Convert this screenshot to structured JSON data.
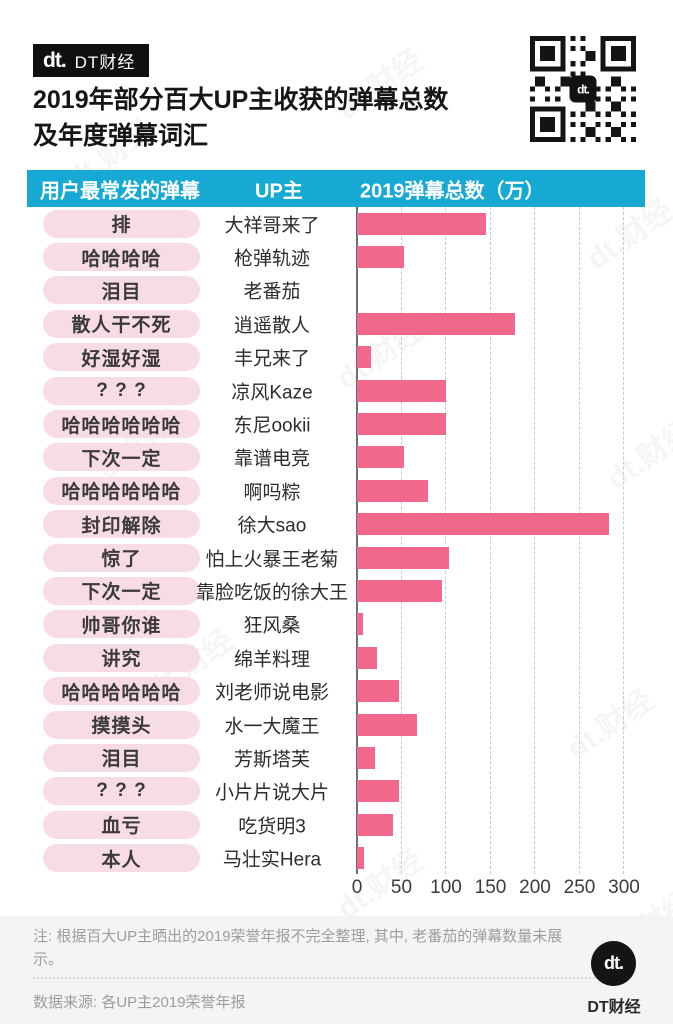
{
  "header": {
    "logo_mark": "dt.",
    "logo_name": "DT财经",
    "title_line1": "2019年部分百大UP主收获的弹幕总数",
    "title_line2": "及年度弹幕词汇"
  },
  "table": {
    "col_comment": "用户最常发的弹幕",
    "col_up": "UP主",
    "col_total": "2019弹幕总数（万）"
  },
  "rows": [
    {
      "comment": "排",
      "up": "大祥哥来了",
      "value": 145
    },
    {
      "comment": "哈哈哈哈",
      "up": "枪弹轨迹",
      "value": 53
    },
    {
      "comment": "泪目",
      "up": "老番茄",
      "value": null
    },
    {
      "comment": "散人干不死",
      "up": "逍遥散人",
      "value": 177
    },
    {
      "comment": "好湿好湿",
      "up": "丰兄来了",
      "value": 16
    },
    {
      "comment": "? ? ?",
      "up": "凉风Kaze",
      "value": 100
    },
    {
      "comment": "哈哈哈哈哈哈",
      "up": "东尼ookii",
      "value": 100
    },
    {
      "comment": "下次一定",
      "up": "靠谱电竞",
      "value": 53
    },
    {
      "comment": "哈哈哈哈哈哈",
      "up": "啊吗粽",
      "value": 80
    },
    {
      "comment": "封印解除",
      "up": "徐大sao",
      "value": 283
    },
    {
      "comment": "惊了",
      "up": "怕上火暴王老菊",
      "value": 103
    },
    {
      "comment": "下次一定",
      "up": "靠脸吃饭的徐大王",
      "value": 95
    },
    {
      "comment": "帅哥你谁",
      "up": "狂风桑",
      "value": 7
    },
    {
      "comment": "讲究",
      "up": "绵羊料理",
      "value": 22
    },
    {
      "comment": "哈哈哈哈哈哈",
      "up": "刘老师说电影",
      "value": 47
    },
    {
      "comment": "摸摸头",
      "up": "水一大魔王",
      "value": 67
    },
    {
      "comment": "泪目",
      "up": "芳斯塔芙",
      "value": 20
    },
    {
      "comment": "? ? ?",
      "up": "小片片说大片",
      "value": 47
    },
    {
      "comment": "血亏",
      "up": "吃货明3",
      "value": 40
    },
    {
      "comment": "本人",
      "up": "马壮实Hera",
      "value": 8
    }
  ],
  "axis": {
    "ticks": [
      0,
      50,
      100,
      150,
      200,
      250,
      300
    ],
    "max": 300
  },
  "footer": {
    "note": "注: 根据百大UP主晒出的2019荣誉年报不完全整理, 其中, 老番茄的弹幕数量未展示。",
    "source": "数据来源: 各UP主2019荣誉年报",
    "logo_mark": "dt.",
    "logo_name": "DT财经"
  },
  "watermark_text": "dt.财经",
  "colors": {
    "accent_cyan": "#16a9d4",
    "bar_pink": "#f2688c",
    "pill_pink": "#f8dce3",
    "logo_red": "#d43a2f"
  },
  "chart_data": {
    "type": "bar",
    "orientation": "horizontal",
    "title": "2019年部分百大UP主收获的弹幕总数及年度弹幕词汇",
    "xlabel": "2019弹幕总数（万）",
    "categories": [
      "大祥哥来了",
      "枪弹轨迹",
      "老番茄",
      "逍遥散人",
      "丰兄来了",
      "凉风Kaze",
      "东尼ookii",
      "靠谱电竞",
      "啊吗粽",
      "徐大sao",
      "怕上火暴王老菊",
      "靠脸吃饭的徐大王",
      "狂风桑",
      "绵羊料理",
      "刘老师说电影",
      "水一大魔王",
      "芳斯塔芙",
      "小片片说大片",
      "吃货明3",
      "马壮实Hera"
    ],
    "series": [
      {
        "name": "2019弹幕总数（万）",
        "values": [
          145,
          53,
          null,
          177,
          16,
          100,
          100,
          53,
          80,
          283,
          103,
          95,
          7,
          22,
          47,
          67,
          20,
          47,
          40,
          8
        ]
      }
    ],
    "top_comments": [
      "排",
      "哈哈哈哈",
      "泪目",
      "散人干不死",
      "好湿好湿",
      "? ? ?",
      "哈哈哈哈哈哈",
      "下次一定",
      "哈哈哈哈哈哈",
      "封印解除",
      "惊了",
      "下次一定",
      "帅哥你谁",
      "讲究",
      "哈哈哈哈哈哈",
      "摸摸头",
      "泪目",
      "? ? ?",
      "血亏",
      "本人"
    ],
    "xlim": [
      0,
      300
    ],
    "xticks": [
      0,
      50,
      100,
      150,
      200,
      250,
      300
    ],
    "grid": "vertical-dashed",
    "annotations": [
      "老番茄的弹幕数量未展示"
    ]
  }
}
